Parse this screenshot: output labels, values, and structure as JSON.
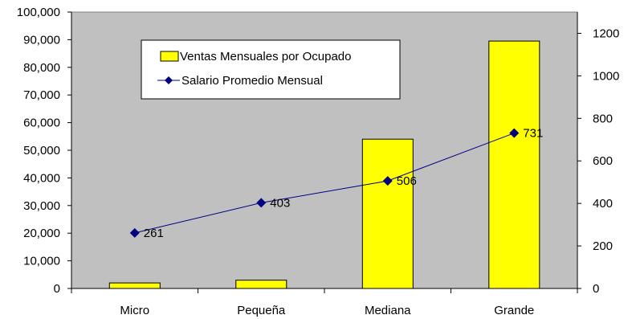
{
  "chart_data": {
    "type": "bar",
    "categories": [
      "Micro",
      "Pequeña",
      "Mediana",
      "Grande"
    ],
    "series": [
      {
        "name": "Ventas Mensuales por Ocupado",
        "type": "bar",
        "axis": "left",
        "color": "#ffff00",
        "values": [
          2000,
          3000,
          54000,
          89500
        ]
      },
      {
        "name": "Salario Promedio Mensual",
        "type": "line",
        "axis": "right",
        "color": "#000080",
        "values": [
          261,
          403,
          506,
          731
        ],
        "labels": [
          "261",
          "403",
          "506",
          "731"
        ]
      }
    ],
    "y_left": {
      "min": 0,
      "max": 100000,
      "step": 10000,
      "ticks": [
        "0",
        "10,000",
        "20,000",
        "30,000",
        "40,000",
        "50,000",
        "60,000",
        "70,000",
        "80,000",
        "90,000",
        "100,000"
      ]
    },
    "y_right": {
      "min": 0,
      "max": 1300,
      "step": 200,
      "ticks": [
        "0",
        "200",
        "400",
        "600",
        "800",
        "1000",
        "1200"
      ]
    },
    "plot_background": "#c0c0c0",
    "grid": false,
    "legend_position": "top-left-inside"
  }
}
